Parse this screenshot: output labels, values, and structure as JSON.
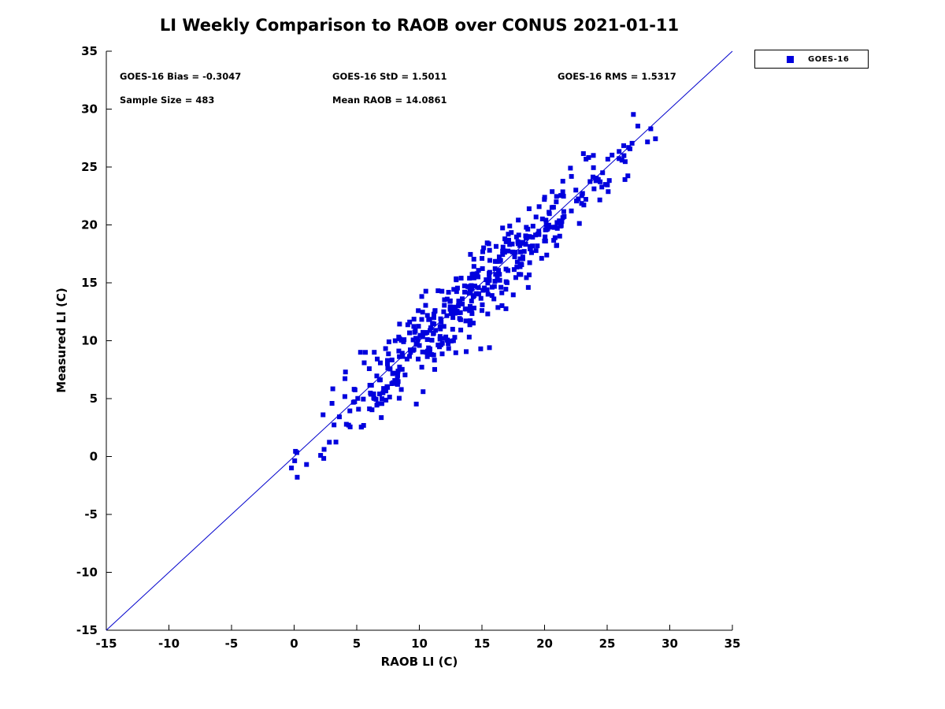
{
  "stats": {
    "bias": "GOES-16 Bias = -0.3047",
    "std": "GOES-16 StD = 1.5011",
    "rms": "GOES-16 RMS = 1.5317",
    "sample_size": "Sample Size = 483",
    "mean_raob": "Mean RAOB = 14.0861"
  },
  "legend": {
    "label": "GOES-16"
  },
  "chart_data": {
    "type": "scatter",
    "title": "LI Weekly Comparison to RAOB over CONUS 2021-01-11",
    "xlabel": "RAOB LI (C)",
    "ylabel": "Measured LI (C)",
    "xlim": [
      -15,
      35
    ],
    "ylim": [
      -15,
      35
    ],
    "x_ticks": [
      -15,
      -10,
      -5,
      0,
      5,
      10,
      15,
      20,
      25,
      30,
      35
    ],
    "y_ticks": [
      -15,
      -10,
      -5,
      0,
      5,
      10,
      15,
      20,
      25,
      30,
      35
    ],
    "grid": false,
    "legend_position": "top-right-outside",
    "axis_color": "#000000",
    "identity_line": {
      "from": [
        -15,
        -15
      ],
      "to": [
        35,
        35
      ],
      "color": "#0000cc",
      "width": 1
    },
    "series": [
      {
        "name": "GOES-16",
        "marker": "square",
        "marker_size": 6,
        "color": "#0000dd",
        "n_points": 483,
        "x_mean": 14.0861,
        "x_std": 6.5,
        "x_range": [
          -0.6,
          29.2
        ],
        "bias": -0.3047,
        "residual_std": 1.5011,
        "rms": 1.5317,
        "seed": 42,
        "outlier_points": [
          [
            4.1,
            7.3
          ],
          [
            5.3,
            9.0
          ],
          [
            6.4,
            9.0
          ],
          [
            10.3,
            5.6
          ],
          [
            14.9,
            9.3
          ],
          [
            15.6,
            9.4
          ],
          [
            18.7,
            14.6
          ],
          [
            23.9,
            26.0
          ]
        ]
      }
    ]
  }
}
